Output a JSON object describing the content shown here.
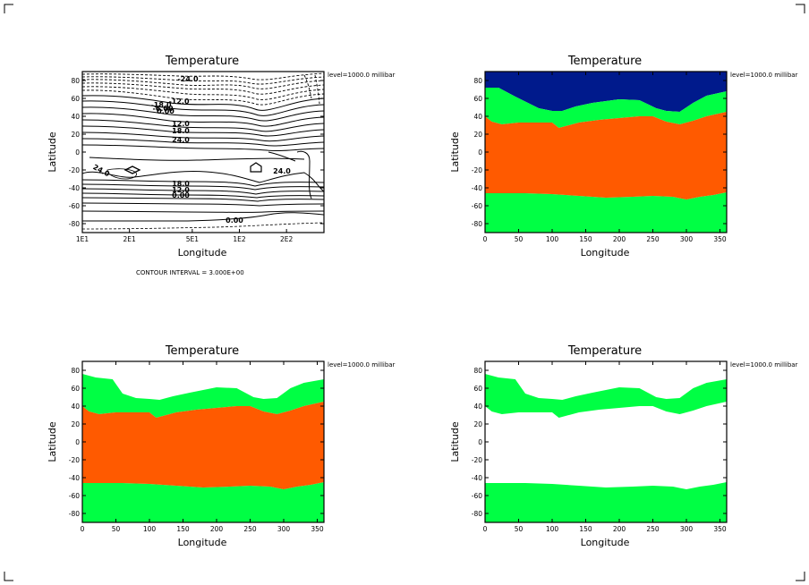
{
  "colors": {
    "cold": "#001a8c",
    "mid": "#00ff44",
    "warm": "#ff5a00",
    "ink": "#000000"
  },
  "chart_data": [
    {
      "type": "contour",
      "title": "Temperature",
      "level_label": "level=1000.0 millibar",
      "xlabel": "Longitude",
      "ylabel": "Latitude",
      "x_tick_labels": [
        "1E1",
        "2E1",
        "5E1",
        "1E2",
        "2E2"
      ],
      "y_ticks": [
        80,
        60,
        40,
        20,
        0,
        -20,
        -40,
        -60,
        -80
      ],
      "ylim": [
        -90,
        90
      ],
      "footnote": "CONTOUR INTERVAL = 3.000E+00",
      "contour_labels": [
        "-24.0",
        "-18.0",
        "-12.0",
        "-6.00",
        "0.00",
        "12.0",
        "18.0",
        "24.0",
        "24.0",
        "24.0",
        "18.0",
        "12.0",
        "0.00",
        "0.00"
      ]
    },
    {
      "type": "filled-contour",
      "title": "Temperature",
      "level_label": "level=1000.0 millibar",
      "xlabel": "Longitude",
      "ylabel": "Latitude",
      "xlim": [
        0,
        360
      ],
      "ylim": [
        -90,
        90
      ],
      "x_ticks": [
        0,
        50,
        100,
        150,
        200,
        250,
        300,
        350
      ],
      "y_ticks": [
        80,
        60,
        40,
        20,
        0,
        -20,
        -40,
        -60,
        -80
      ],
      "bands": [
        "cold",
        "mid",
        "warm"
      ],
      "boundaries": {
        "north": {
          "x": [
            0,
            20,
            45,
            80,
            100,
            115,
            135,
            160,
            200,
            230,
            255,
            270,
            290,
            310,
            330,
            360
          ],
          "y": [
            72,
            72,
            62,
            49,
            46,
            46,
            51,
            55,
            59,
            58,
            49,
            46,
            45,
            55,
            63,
            68
          ]
        },
        "warm_north": {
          "x": [
            0,
            10,
            25,
            50,
            80,
            100,
            110,
            120,
            140,
            170,
            200,
            230,
            250,
            270,
            290,
            310,
            330,
            360
          ],
          "y": [
            40,
            34,
            31,
            33,
            33,
            33,
            27,
            29,
            33,
            36,
            38,
            40,
            40,
            34,
            31,
            35,
            40,
            45
          ]
        },
        "warm_south": {
          "x": [
            0,
            30,
            60,
            100,
            140,
            180,
            220,
            250,
            280,
            300,
            320,
            340,
            360
          ],
          "y": [
            -46,
            -46,
            -46,
            -47,
            -49,
            -51,
            -50,
            -49,
            -50,
            -53,
            -50,
            -48,
            -45
          ]
        }
      }
    },
    {
      "type": "filled-contour",
      "title": "Temperature",
      "level_label": "level=1000.0 millibar",
      "xlabel": "Longitude",
      "ylabel": "Latitude",
      "xlim": [
        0,
        360
      ],
      "ylim": [
        -90,
        90
      ],
      "x_ticks": [
        0,
        50,
        100,
        150,
        200,
        250,
        300,
        350
      ],
      "y_ticks": [
        80,
        60,
        40,
        20,
        0,
        -20,
        -40,
        -60,
        -80
      ],
      "bands": [
        "mid",
        "warm"
      ],
      "boundaries": {
        "north": {
          "x": [
            0,
            20,
            45,
            60,
            80,
            100,
            115,
            135,
            160,
            200,
            230,
            255,
            270,
            290,
            310,
            330,
            360
          ],
          "y": [
            76,
            72,
            70,
            54,
            49,
            48,
            47,
            51,
            55,
            61,
            60,
            50,
            48,
            49,
            60,
            66,
            70
          ]
        },
        "warm_north": {
          "x": [
            0,
            10,
            25,
            50,
            80,
            100,
            110,
            120,
            140,
            170,
            200,
            230,
            250,
            270,
            290,
            310,
            330,
            360
          ],
          "y": [
            40,
            34,
            31,
            33,
            33,
            33,
            27,
            29,
            33,
            36,
            38,
            40,
            40,
            34,
            31,
            35,
            40,
            45
          ]
        },
        "warm_south": {
          "x": [
            0,
            30,
            60,
            100,
            140,
            180,
            220,
            250,
            280,
            300,
            320,
            340,
            360
          ],
          "y": [
            -46,
            -46,
            -46,
            -47,
            -49,
            -51,
            -50,
            -49,
            -50,
            -53,
            -50,
            -48,
            -45
          ]
        }
      }
    },
    {
      "type": "filled-contour",
      "title": "Temperature",
      "level_label": "level=1000.0 millibar",
      "xlabel": "Longitude",
      "ylabel": "Latitude",
      "xlim": [
        0,
        360
      ],
      "ylim": [
        -90,
        90
      ],
      "x_ticks": [
        0,
        50,
        100,
        150,
        200,
        250,
        300,
        350
      ],
      "y_ticks": [
        80,
        60,
        40,
        20,
        0,
        -20,
        -40,
        -60,
        -80
      ],
      "bands": [
        "mid"
      ],
      "boundaries": {
        "north": {
          "x": [
            0,
            20,
            45,
            60,
            80,
            100,
            115,
            135,
            160,
            200,
            230,
            255,
            270,
            290,
            310,
            330,
            360
          ],
          "y": [
            76,
            72,
            70,
            54,
            49,
            48,
            47,
            51,
            55,
            61,
            60,
            50,
            48,
            49,
            60,
            66,
            70
          ]
        },
        "warm_north": {
          "x": [
            0,
            10,
            25,
            50,
            80,
            100,
            110,
            120,
            140,
            170,
            200,
            230,
            250,
            270,
            290,
            310,
            330,
            360
          ],
          "y": [
            40,
            34,
            31,
            33,
            33,
            33,
            27,
            29,
            33,
            36,
            38,
            40,
            40,
            34,
            31,
            35,
            40,
            45
          ]
        },
        "warm_south": {
          "x": [
            0,
            30,
            60,
            100,
            140,
            180,
            220,
            250,
            280,
            300,
            320,
            340,
            360
          ],
          "y": [
            -46,
            -46,
            -46,
            -47,
            -49,
            -51,
            -50,
            -49,
            -50,
            -53,
            -50,
            -48,
            -45
          ]
        }
      }
    }
  ]
}
